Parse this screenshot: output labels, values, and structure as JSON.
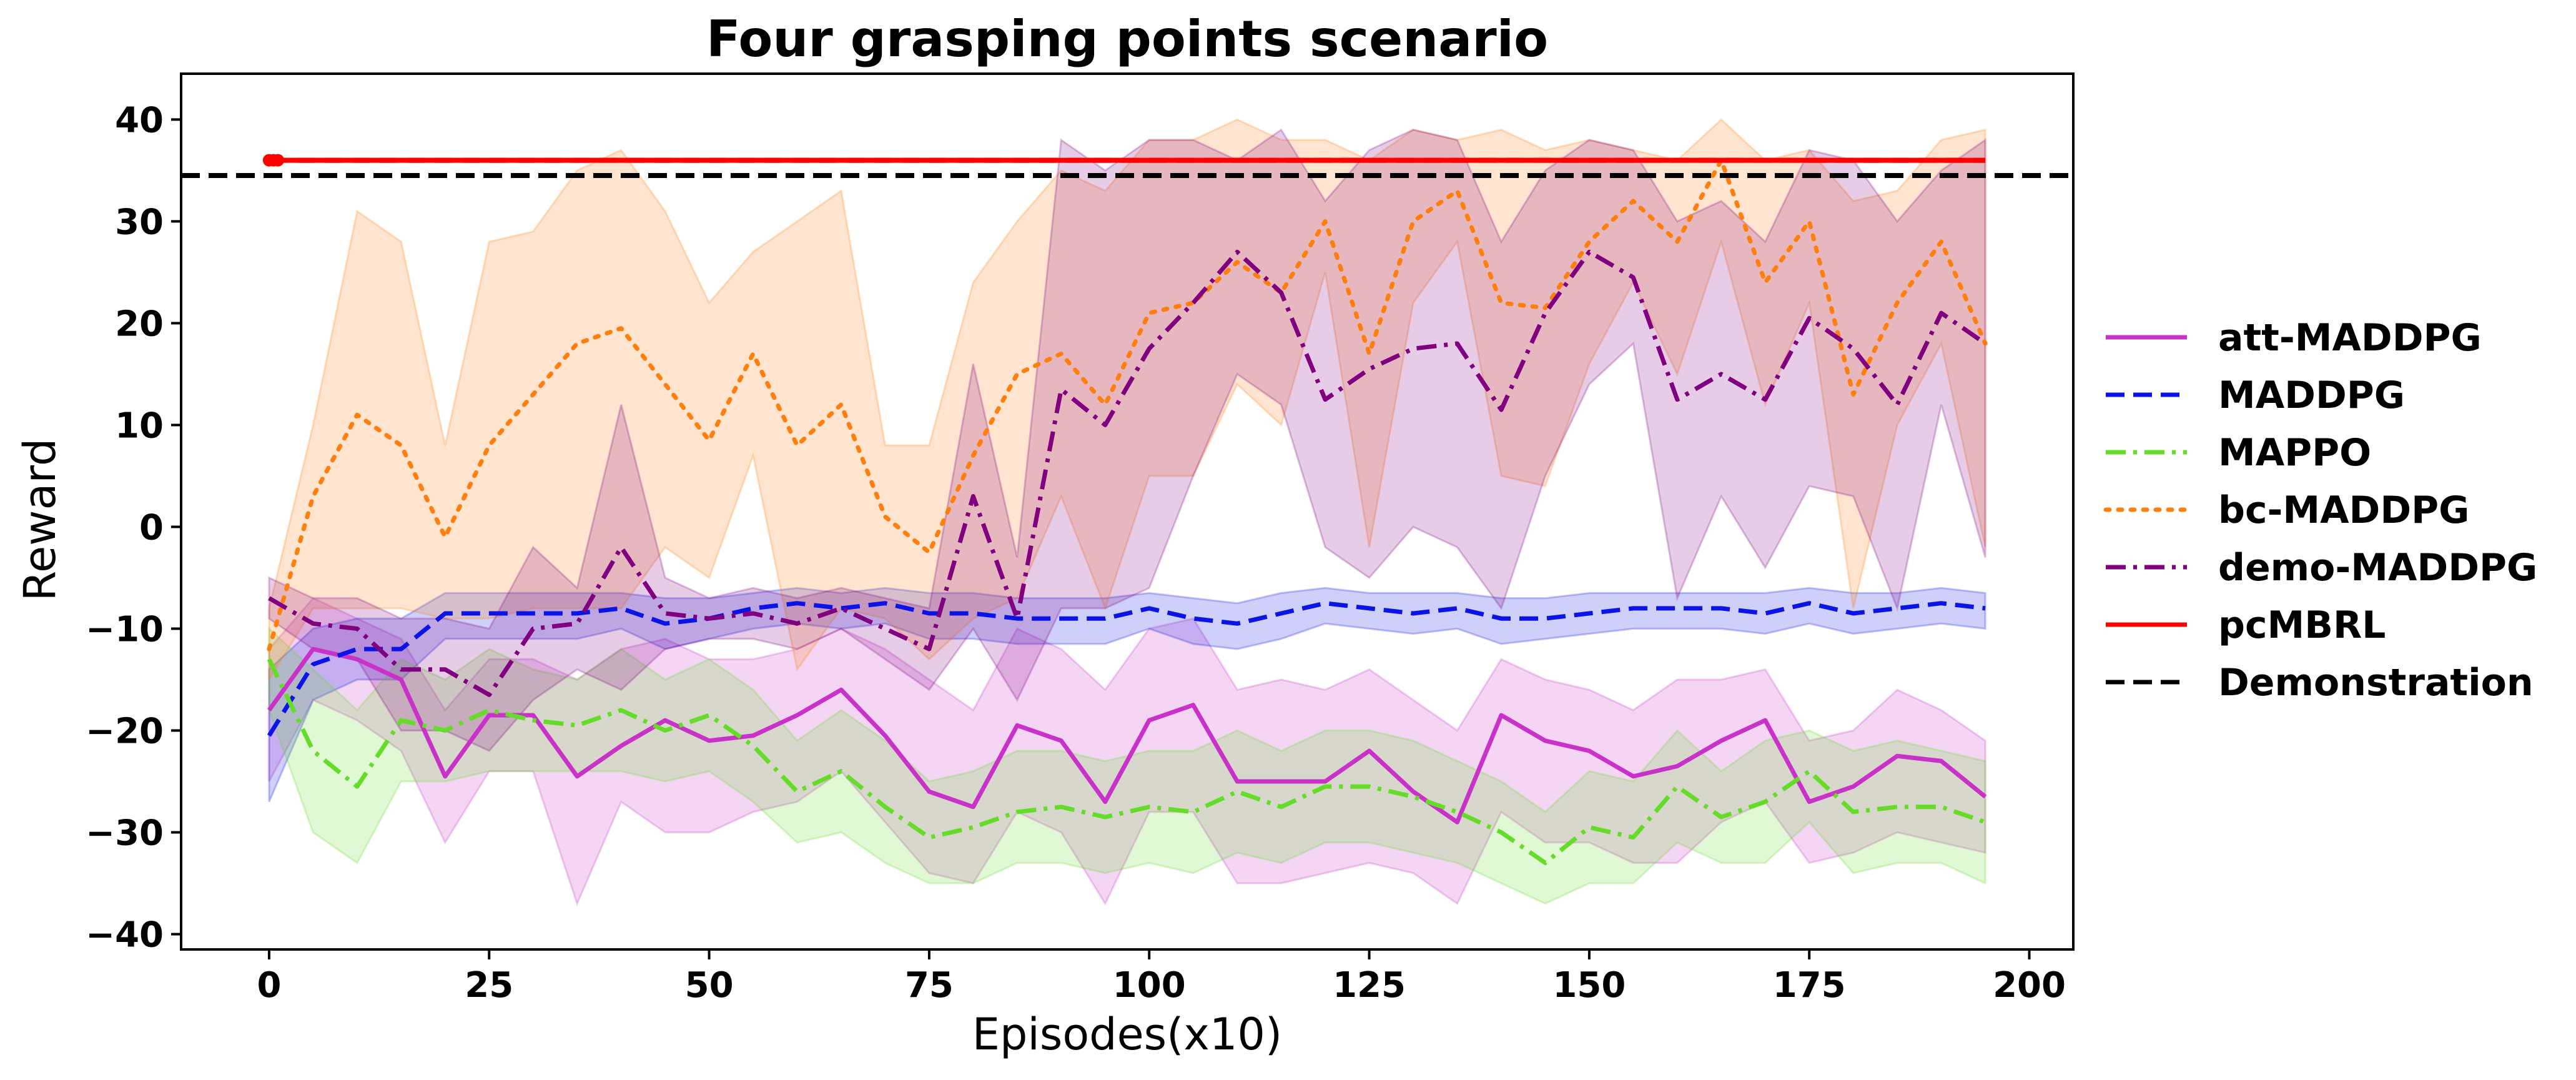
{
  "chart_data": {
    "type": "line",
    "title": "Four grasping points scenario",
    "xlabel": "Episodes(x10)",
    "ylabel": "Reward",
    "xlim": [
      -10,
      205
    ],
    "ylim": [
      -41.5,
      44.5
    ],
    "xticks": [
      0,
      25,
      50,
      75,
      100,
      125,
      150,
      175,
      200
    ],
    "yticks": [
      40,
      30,
      20,
      10,
      0,
      -10,
      -20,
      -30,
      -40
    ],
    "grid": false,
    "legend_position": "outside-right",
    "x": [
      0,
      5,
      10,
      15,
      20,
      25,
      30,
      35,
      40,
      45,
      50,
      55,
      60,
      65,
      70,
      75,
      80,
      85,
      90,
      95,
      100,
      105,
      110,
      115,
      120,
      125,
      130,
      135,
      140,
      145,
      150,
      155,
      160,
      165,
      170,
      175,
      180,
      185,
      190,
      195
    ],
    "series": [
      {
        "name": "att-MADDPG",
        "color": "#c832c8",
        "dash": "solid",
        "values": [
          -18,
          -12,
          -13,
          -15,
          -24.5,
          -18.5,
          -18.5,
          -24.5,
          -21.5,
          -19,
          -21,
          -20.5,
          -18.5,
          -16,
          -20.5,
          -26,
          -27.5,
          -19.5,
          -21,
          -27,
          -19,
          -17.5,
          -25,
          -25,
          -25,
          -22,
          -26,
          -29,
          -18.5,
          -21,
          -22,
          -24.5,
          -23.5,
          -21,
          -19,
          -27,
          -25.5,
          -22.5,
          -23,
          -26.5
        ],
        "band_upper": [
          -12,
          -7,
          -9,
          -11,
          -18,
          -13,
          -13,
          -15,
          -12,
          -11,
          -13,
          -13,
          -12,
          -10,
          -12,
          -15,
          -18,
          -10,
          -12,
          -16,
          -10,
          -9,
          -16,
          -15,
          -16,
          -14,
          -17,
          -20,
          -13,
          -15,
          -16,
          -18,
          -15,
          -15,
          -14,
          -21,
          -20,
          -16,
          -18,
          -21
        ],
        "band_lower": [
          -25,
          -17,
          -19,
          -22,
          -31,
          -24,
          -24,
          -37,
          -27,
          -30,
          -30,
          -28,
          -27,
          -24,
          -29,
          -34,
          -35,
          -28,
          -30,
          -37,
          -28,
          -28,
          -35,
          -35,
          -34,
          -33,
          -34,
          -37,
          -28,
          -31,
          -31,
          -33,
          -33,
          -29,
          -27,
          -33,
          -32,
          -30,
          -31,
          -32
        ]
      },
      {
        "name": "MADDPG",
        "color": "#0a14e6",
        "dash": "dashed",
        "values": [
          -20.5,
          -13.5,
          -12,
          -12,
          -8.5,
          -8.5,
          -8.5,
          -8.5,
          -8,
          -9.5,
          -9,
          -8,
          -7.5,
          -8,
          -7.5,
          -8.5,
          -8.5,
          -9,
          -9,
          -9,
          -8,
          -9,
          -9.5,
          -8.5,
          -7.5,
          -8,
          -8.5,
          -8,
          -9,
          -9,
          -8.5,
          -8,
          -8,
          -8,
          -8.5,
          -7.5,
          -8.5,
          -8,
          -7.5,
          -8
        ],
        "band_upper": [
          -14,
          -10,
          -9,
          -9,
          -6.5,
          -6.5,
          -6.5,
          -6.5,
          -6.5,
          -7,
          -7,
          -6.5,
          -6,
          -6.5,
          -6,
          -6.5,
          -6.5,
          -7,
          -7,
          -7,
          -6.5,
          -7,
          -7.5,
          -6.5,
          -6,
          -6.5,
          -6.5,
          -6.5,
          -7,
          -7,
          -6.5,
          -6.5,
          -6.5,
          -6.5,
          -6.5,
          -6,
          -6.5,
          -6.5,
          -6,
          -6.5
        ],
        "band_lower": [
          -27,
          -17,
          -15,
          -15,
          -11,
          -11,
          -11,
          -11,
          -10,
          -12,
          -11,
          -10,
          -9.5,
          -10,
          -9.5,
          -11,
          -11,
          -11.5,
          -11.5,
          -11.5,
          -10,
          -11.5,
          -12,
          -11,
          -9.5,
          -10,
          -10.5,
          -10,
          -11.5,
          -11,
          -10.5,
          -10,
          -10,
          -10,
          -10.5,
          -9.5,
          -10.5,
          -10,
          -9.5,
          -10
        ]
      },
      {
        "name": "MAPPO",
        "color": "#64dc28",
        "dash": "dashdot",
        "values": [
          -13,
          -22,
          -25.5,
          -19,
          -20,
          -18,
          -19,
          -19.5,
          -18,
          -20,
          -18.5,
          -21.5,
          -26,
          -24,
          -27.5,
          -30.5,
          -29.5,
          -28,
          -27.5,
          -28.5,
          -27.5,
          -28,
          -26,
          -27.5,
          -25.5,
          -25.5,
          -26.5,
          -28,
          -30,
          -33,
          -29.5,
          -30.5,
          -25.5,
          -28.5,
          -27,
          -24,
          -28,
          -27.5,
          -27.5,
          -29
        ],
        "band_upper": [
          -10,
          -14,
          -18,
          -13,
          -15,
          -12,
          -14,
          -15,
          -12,
          -15,
          -13,
          -16,
          -21,
          -18,
          -21,
          -25,
          -24,
          -22,
          -22,
          -23,
          -22,
          -22,
          -20,
          -22,
          -20,
          -20,
          -21,
          -23,
          -25,
          -28,
          -24,
          -25,
          -20,
          -24,
          -21,
          -20,
          -22,
          -21,
          -22,
          -23
        ],
        "band_lower": [
          -18,
          -30,
          -33,
          -25,
          -25,
          -24,
          -24,
          -24,
          -24,
          -25,
          -24,
          -27,
          -31,
          -30,
          -33,
          -35,
          -35,
          -33,
          -33,
          -34,
          -33,
          -34,
          -32,
          -33,
          -31,
          -31,
          -32,
          -33,
          -35,
          -37,
          -35,
          -35,
          -31,
          -33,
          -33,
          -29,
          -34,
          -33,
          -33,
          -35
        ]
      },
      {
        "name": "bc-MADDPG",
        "color": "#ff7f0e",
        "dash": "dotted",
        "values": [
          -12,
          3,
          11,
          8,
          -1,
          8,
          13,
          18,
          19.5,
          14,
          8.5,
          17,
          8,
          12,
          1,
          -2.5,
          7,
          15,
          17,
          12,
          21,
          22,
          26,
          23,
          30,
          17,
          30,
          33,
          22,
          21.5,
          28,
          32,
          28,
          36,
          24,
          30,
          13,
          22,
          28,
          18
        ],
        "band_upper": [
          -8,
          10,
          31,
          28,
          8,
          28,
          29,
          35,
          37,
          31,
          22,
          27,
          30,
          33,
          8,
          8,
          24,
          30,
          35,
          33,
          38,
          38,
          40,
          38,
          38,
          36,
          39,
          38,
          39,
          37,
          38,
          37,
          36,
          40,
          36,
          37,
          32,
          33,
          38,
          39
        ],
        "band_lower": [
          -15,
          -8,
          -8,
          -8,
          -9,
          -9,
          -8,
          -8,
          -8,
          -2,
          -5,
          7,
          -14,
          -8,
          -9,
          -13,
          -9,
          -7,
          3,
          -8,
          5,
          5,
          14,
          10,
          25,
          -2,
          22,
          28,
          5,
          4,
          16,
          24,
          15,
          28,
          12,
          22,
          -8,
          10,
          18,
          -2
        ]
      },
      {
        "name": "demo-MADDPG",
        "color": "#800080",
        "dash": "dashdot",
        "values": [
          -7,
          -9.5,
          -10,
          -14,
          -14,
          -16.5,
          -10,
          -9.5,
          -2,
          -8.5,
          -9,
          -8.5,
          -9.5,
          -8,
          -10,
          -12,
          3,
          -9,
          13.5,
          10,
          17.5,
          22,
          27,
          23,
          12.5,
          15.5,
          17.5,
          18,
          11.5,
          21,
          27,
          24.5,
          12.5,
          15,
          12.5,
          20.5,
          17.5,
          12,
          21,
          18
        ],
        "band_upper": [
          -5,
          -7,
          -7,
          -9,
          -9,
          -10,
          -2,
          -6,
          12,
          -5,
          -7,
          -6,
          -7,
          -6,
          -7,
          -8,
          16,
          -3,
          38,
          35,
          38,
          38,
          36,
          39,
          32,
          37,
          39,
          38,
          28,
          35,
          38,
          37,
          30,
          32,
          28,
          37,
          36,
          30,
          35,
          38
        ],
        "band_lower": [
          -9,
          -12,
          -13,
          -20,
          -20,
          -22,
          -17,
          -14,
          -16,
          -12,
          -11,
          -11,
          -12,
          -10,
          -13,
          -16,
          -10,
          -17,
          -8,
          -8,
          -6,
          5,
          15,
          12,
          -2,
          -5,
          0,
          -2,
          -8,
          5,
          14,
          18,
          -7,
          3,
          -4,
          4,
          3,
          -8,
          12,
          -3
        ]
      }
    ],
    "reference_lines": [
      {
        "name": "pcMBRL",
        "color": "#ff0000",
        "dash": "solid",
        "y": 36,
        "x_start": 0,
        "x_end": 195
      },
      {
        "name": "Demonstration",
        "color": "#000000",
        "dash": "dashed",
        "y": 34.5
      }
    ]
  }
}
